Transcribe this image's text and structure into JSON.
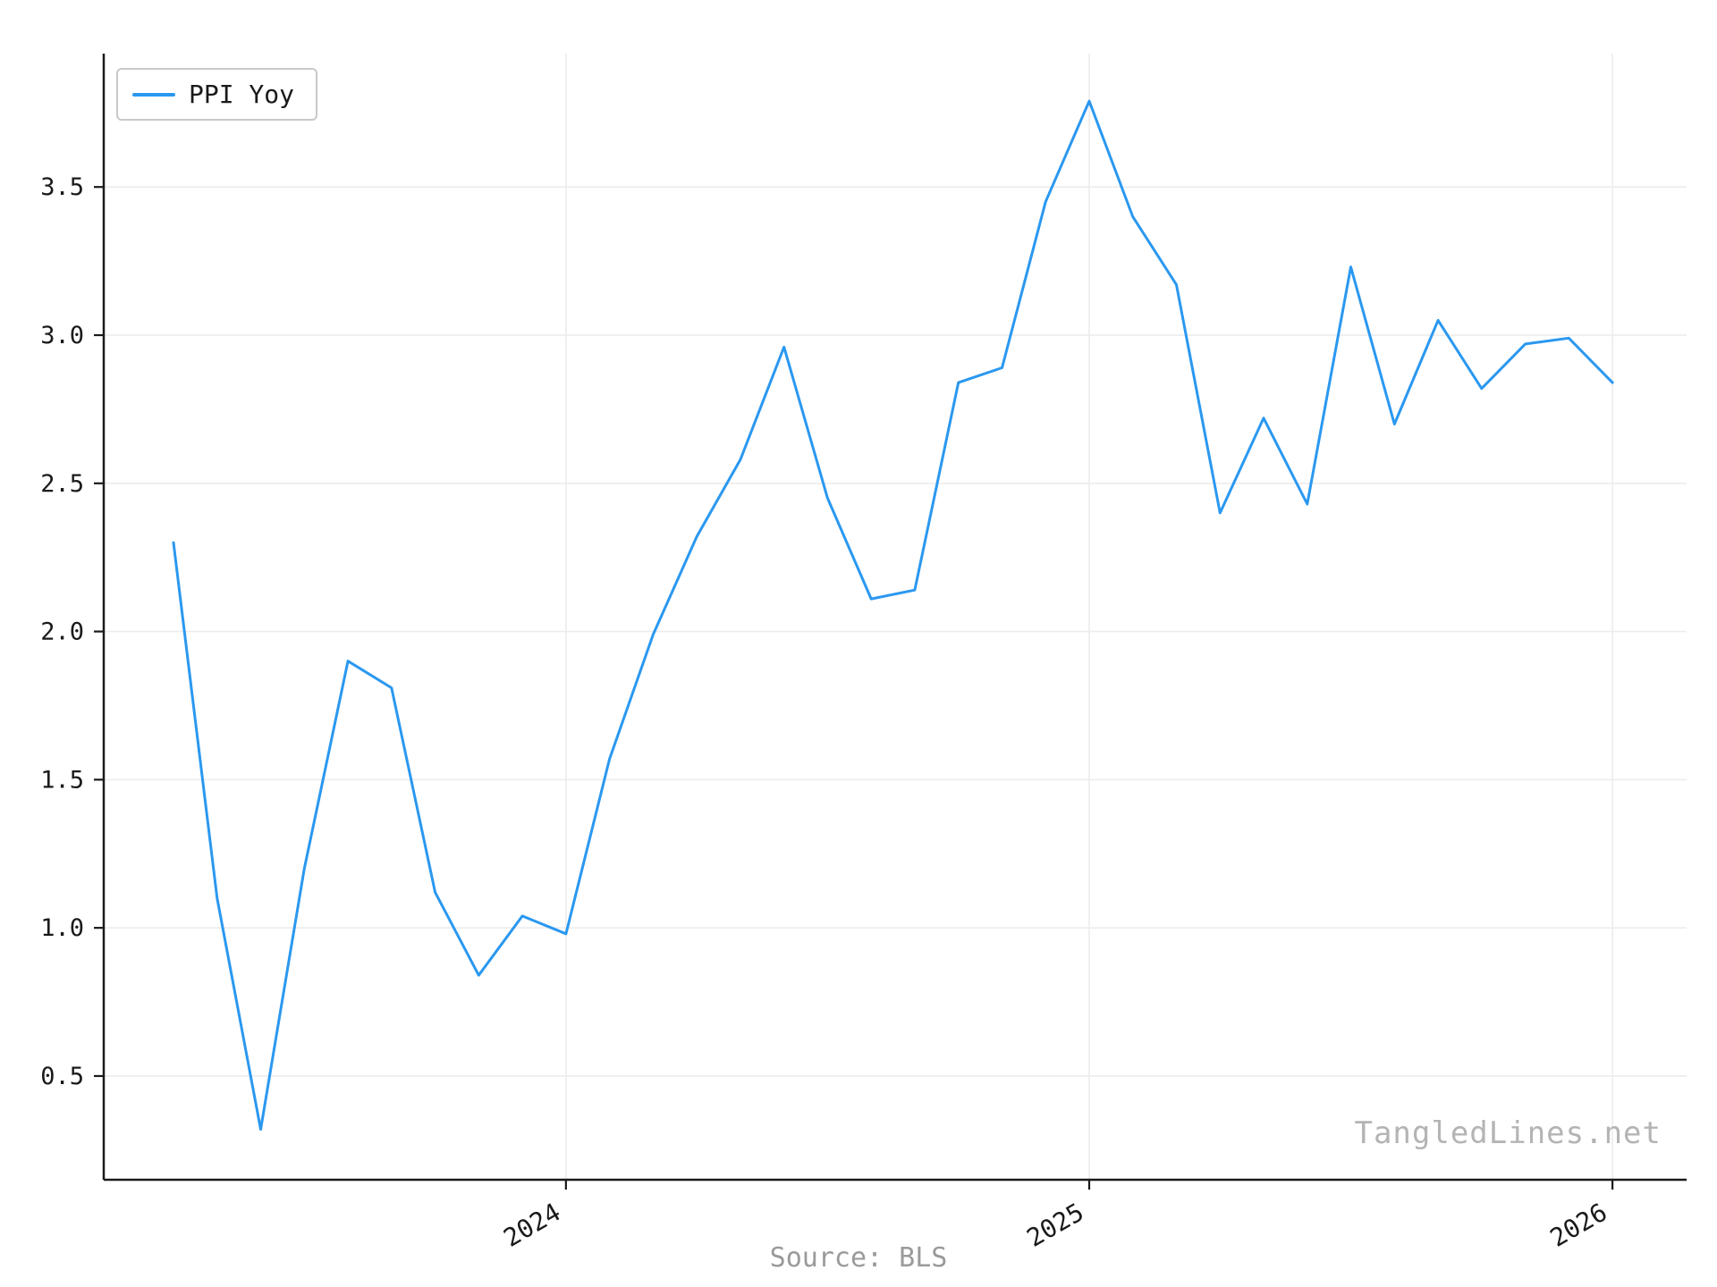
{
  "figure": {
    "background": "#ffffff",
    "watermark": "TangledLines.net",
    "source_caption": "Source: BLS"
  },
  "legend": {
    "label": "PPI Yoy"
  },
  "chart_data": {
    "type": "line",
    "title": "",
    "xlabel": "",
    "ylabel": "",
    "grid": true,
    "legend_position": "upper left",
    "ylim": [
      0.15,
      3.95
    ],
    "yticks": [
      0.5,
      1.0,
      1.5,
      2.0,
      2.5,
      3.0,
      3.5
    ],
    "ytick_labels": [
      "0.5",
      "1.0",
      "1.5",
      "2.0",
      "2.5",
      "3.0",
      "3.5"
    ],
    "xticks": [
      {
        "label": "2024",
        "month": "2024-01"
      },
      {
        "label": "2025",
        "month": "2025-01"
      },
      {
        "label": "2026",
        "month": "2026-01"
      }
    ],
    "series": [
      {
        "name": "PPI Yoy",
        "color": "#2a98f0",
        "x": [
          "2023-04",
          "2023-05",
          "2023-06",
          "2023-07",
          "2023-08",
          "2023-09",
          "2023-10",
          "2023-11",
          "2023-12",
          "2024-01",
          "2024-02",
          "2024-03",
          "2024-04",
          "2024-05",
          "2024-06",
          "2024-07",
          "2024-08",
          "2024-09",
          "2024-10",
          "2024-11",
          "2024-12",
          "2025-01",
          "2025-02",
          "2025-03",
          "2025-04",
          "2025-05",
          "2025-06",
          "2025-07",
          "2025-08",
          "2025-09",
          "2025-10",
          "2025-11",
          "2025-12",
          "2026-01"
        ],
        "values": [
          2.3,
          1.1,
          0.32,
          1.2,
          1.9,
          1.81,
          1.12,
          0.84,
          1.04,
          0.98,
          1.57,
          1.99,
          2.32,
          2.58,
          2.96,
          2.45,
          2.11,
          2.14,
          2.84,
          2.89,
          3.45,
          3.79,
          3.4,
          3.17,
          2.4,
          2.72,
          2.43,
          3.23,
          2.7,
          3.05,
          2.82,
          2.97,
          2.99,
          2.84
        ]
      }
    ]
  }
}
